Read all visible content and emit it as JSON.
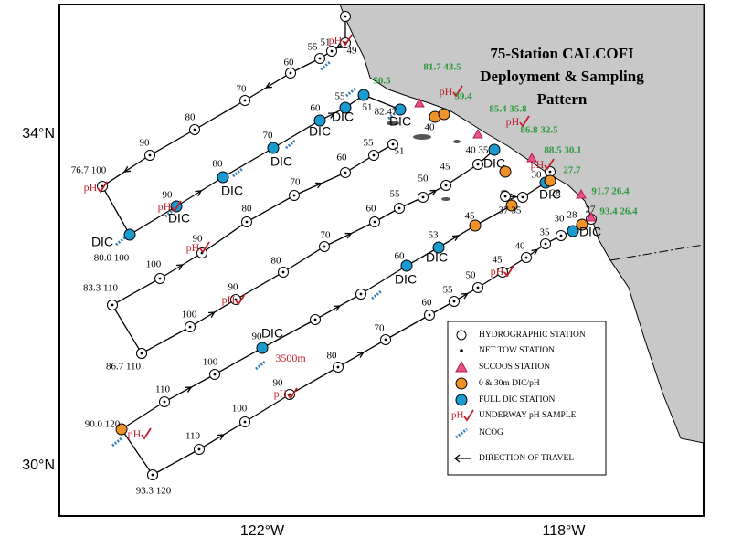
{
  "title_lines": [
    "75-Station CALCOFI",
    "Deployment & Sampling",
    "Pattern"
  ],
  "lat_labels": [
    "34°N",
    "30°N"
  ],
  "lon_labels": [
    "122°W",
    "118°W"
  ],
  "legend": {
    "entries": [
      "HYDROGRAPHIC STATION",
      "NET TOW STATION",
      "SCCOOS STATION",
      "0 & 30m DIC/pH",
      "FULL DIC STATION",
      "UNDERWAY pH SAMPLE",
      "NCOG",
      "DIRECTION OF TRAVEL"
    ],
    "ph_symbol": "pH"
  },
  "labels": [
    {
      "text": "76.7 100",
      "kind": "station"
    },
    {
      "text": "90",
      "kind": "station"
    },
    {
      "text": "80",
      "kind": "station"
    },
    {
      "text": "70",
      "kind": "station"
    },
    {
      "text": "60",
      "kind": "station"
    },
    {
      "text": "55",
      "kind": "station"
    },
    {
      "text": "51",
      "kind": "station"
    },
    {
      "text": "49",
      "kind": "station"
    },
    {
      "text": "80.0 100",
      "kind": "station"
    },
    {
      "text": "90",
      "kind": "station"
    },
    {
      "text": "80",
      "kind": "station"
    },
    {
      "text": "70",
      "kind": "station"
    },
    {
      "text": "60",
      "kind": "station"
    },
    {
      "text": "55",
      "kind": "station"
    },
    {
      "text": "51",
      "kind": "station"
    },
    {
      "text": "82.47",
      "kind": "station"
    },
    {
      "text": "40",
      "kind": "station"
    },
    {
      "text": "83.3 110",
      "kind": "station"
    },
    {
      "text": "100",
      "kind": "station"
    },
    {
      "text": "90",
      "kind": "station"
    },
    {
      "text": "80",
      "kind": "station"
    },
    {
      "text": "70",
      "kind": "station"
    },
    {
      "text": "60",
      "kind": "station"
    },
    {
      "text": "55",
      "kind": "station"
    },
    {
      "text": "51",
      "kind": "station"
    },
    {
      "text": "40 35",
      "kind": "station"
    },
    {
      "text": "86.7 110",
      "kind": "station"
    },
    {
      "text": "100",
      "kind": "station"
    },
    {
      "text": "90",
      "kind": "station"
    },
    {
      "text": "80",
      "kind": "station"
    },
    {
      "text": "70",
      "kind": "station"
    },
    {
      "text": "60",
      "kind": "station"
    },
    {
      "text": "55",
      "kind": "station"
    },
    {
      "text": "50",
      "kind": "station"
    },
    {
      "text": "45",
      "kind": "station"
    },
    {
      "text": "30",
      "kind": "station"
    },
    {
      "text": "28",
      "kind": "station"
    },
    {
      "text": "90.0 120",
      "kind": "station"
    },
    {
      "text": "110",
      "kind": "station"
    },
    {
      "text": "100",
      "kind": "station"
    },
    {
      "text": "90",
      "kind": "station"
    },
    {
      "text": "60",
      "kind": "station"
    },
    {
      "text": "53",
      "kind": "station"
    },
    {
      "text": "45",
      "kind": "station"
    },
    {
      "text": "37 35",
      "kind": "station"
    },
    {
      "text": "93.3 120",
      "kind": "station"
    },
    {
      "text": "110",
      "kind": "station"
    },
    {
      "text": "100",
      "kind": "station"
    },
    {
      "text": "90",
      "kind": "station"
    },
    {
      "text": "80",
      "kind": "station"
    },
    {
      "text": "70",
      "kind": "station"
    },
    {
      "text": "60",
      "kind": "station"
    },
    {
      "text": "55",
      "kind": "station"
    },
    {
      "text": "50",
      "kind": "station"
    },
    {
      "text": "45",
      "kind": "station"
    },
    {
      "text": "40",
      "kind": "station"
    },
    {
      "text": "35",
      "kind": "station"
    },
    {
      "text": "30",
      "kind": "station"
    },
    {
      "text": "28",
      "kind": "station"
    },
    {
      "text": "27",
      "kind": "station"
    },
    {
      "text": "DIC",
      "kind": "dic"
    },
    {
      "text": "DIC",
      "kind": "dic"
    },
    {
      "text": "DIC",
      "kind": "dic"
    },
    {
      "text": "DIC",
      "kind": "dic"
    },
    {
      "text": "DIC",
      "kind": "dic"
    },
    {
      "text": "DIC",
      "kind": "dic"
    },
    {
      "text": "DIC",
      "kind": "dic"
    },
    {
      "text": "DIC",
      "kind": "dic"
    },
    {
      "text": "DIC",
      "kind": "dic"
    },
    {
      "text": "DIC",
      "kind": "dic"
    },
    {
      "text": "DIC",
      "kind": "dic"
    },
    {
      "text": "DIC",
      "kind": "dic"
    },
    {
      "text": "DIC",
      "kind": "dic"
    },
    {
      "text": "pH",
      "kind": "ph"
    },
    {
      "text": "pH",
      "kind": "ph"
    },
    {
      "text": "pH",
      "kind": "ph"
    },
    {
      "text": "pH",
      "kind": "ph"
    },
    {
      "text": "pH",
      "kind": "ph"
    },
    {
      "text": "pH",
      "kind": "ph"
    },
    {
      "text": "pH",
      "kind": "ph"
    },
    {
      "text": "pH",
      "kind": "ph"
    },
    {
      "text": "pH",
      "kind": "ph"
    },
    {
      "text": "pH",
      "kind": "ph"
    },
    {
      "text": "pH",
      "kind": "ph"
    },
    {
      "text": "50.5",
      "kind": "sccoos"
    },
    {
      "text": "81.7 43.5",
      "kind": "sccoos"
    },
    {
      "text": "39.4",
      "kind": "sccoos"
    },
    {
      "text": "85.4 35.8",
      "kind": "sccoos"
    },
    {
      "text": "86.8 32.5",
      "kind": "sccoos"
    },
    {
      "text": "88.5 30.1",
      "kind": "sccoos"
    },
    {
      "text": "27.7",
      "kind": "sccoos"
    },
    {
      "text": "91.7 26.4",
      "kind": "sccoos"
    },
    {
      "text": "93.4 26.4",
      "kind": "sccoos"
    },
    {
      "text": "3500m",
      "kind": "depth"
    }
  ]
}
